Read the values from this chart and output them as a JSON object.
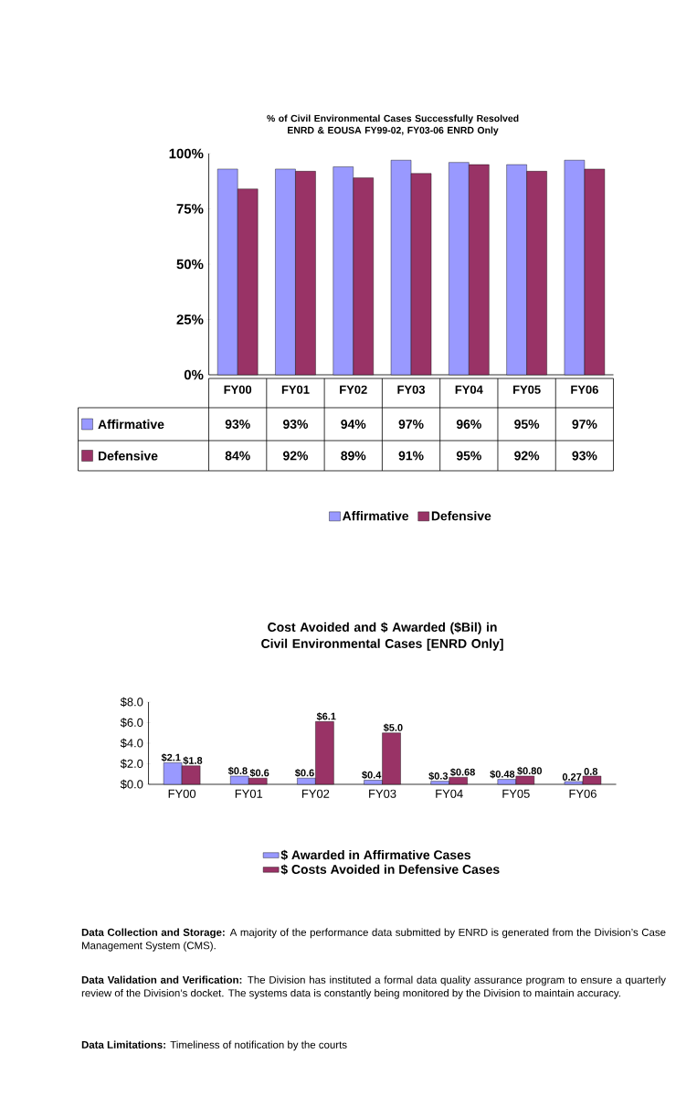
{
  "chart_data": [
    {
      "type": "bar",
      "title": "% of  Civil Environmental Cases Successfully Resolved",
      "subtitle": "ENRD & EOUSA FY99-02, FY03-06 ENRD Only",
      "categories": [
        "FY00",
        "FY01",
        "FY02",
        "FY03",
        "FY04",
        "FY05",
        "FY06"
      ],
      "series": [
        {
          "name": "Affirmative",
          "color": "#9999ff",
          "values": [
            93,
            93,
            94,
            97,
            96,
            95,
            97
          ],
          "value_labels": [
            "93%",
            "93%",
            "94%",
            "97%",
            "96%",
            "95%",
            "97%"
          ]
        },
        {
          "name": "Defensive",
          "color": "#993366",
          "values": [
            84,
            92,
            89,
            91,
            95,
            92,
            93
          ],
          "value_labels": [
            "84%",
            "92%",
            "89%",
            "91%",
            "95%",
            "92%",
            "93%"
          ]
        }
      ],
      "ylim": [
        0,
        100
      ],
      "yticks": [
        {
          "value": 0,
          "label": "0%"
        },
        {
          "value": 25,
          "label": "25%"
        },
        {
          "value": 50,
          "label": "50%"
        },
        {
          "value": 75,
          "label": "75%"
        },
        {
          "value": 100,
          "label": "100%"
        }
      ],
      "legend": "bottom"
    },
    {
      "type": "bar",
      "title": "Cost Avoided and $ Awarded ($Bil) in Civil Environmental Cases [ENRD Only]",
      "categories": [
        "FY00",
        "FY01",
        "FY02",
        "FY03",
        "FY04",
        "FY05",
        "FY06"
      ],
      "series": [
        {
          "name": "$ Awarded in Affirmative Cases",
          "color": "#9999ff",
          "values": [
            2.1,
            0.8,
            0.6,
            0.4,
            0.3,
            0.48,
            0.27
          ],
          "value_labels": [
            "$2.1",
            "$0.8",
            "$0.6",
            "$0.4",
            "$0.3",
            "$0.48",
            "0.27"
          ]
        },
        {
          "name": "$ Costs Avoided in Defensive Cases",
          "color": "#993366",
          "values": [
            1.8,
            0.6,
            6.1,
            5.0,
            0.68,
            0.8,
            0.8
          ],
          "value_labels": [
            "$1.8",
            "$0.6",
            "$6.1",
            "$5.0",
            "$0.68",
            "$0.80",
            "0.8"
          ]
        }
      ],
      "ylim": [
        0,
        8
      ],
      "yticks": [
        {
          "value": 0,
          "label": "$0.0"
        },
        {
          "value": 2,
          "label": "$2.0"
        },
        {
          "value": 4,
          "label": "$4.0"
        },
        {
          "value": 6,
          "label": "$6.0"
        },
        {
          "value": 8,
          "label": "$8.0"
        }
      ],
      "legend": "bottom",
      "annotations": [
        "**Data Collection and Storage:** A majority of the performance data submitted by ENRD is generated from the Division’s Case Management System (CMS).",
        "**Data Validation and Verification:** The Division has instituted a formal data quality assurance program to ensure a quarterly review of the Division’s docket. The systems data is constantly being monitored by the Division to maintain accuracy.",
        "**Data Limitations:** Timeliness of notification by the courts"
      ]
    }
  ]
}
